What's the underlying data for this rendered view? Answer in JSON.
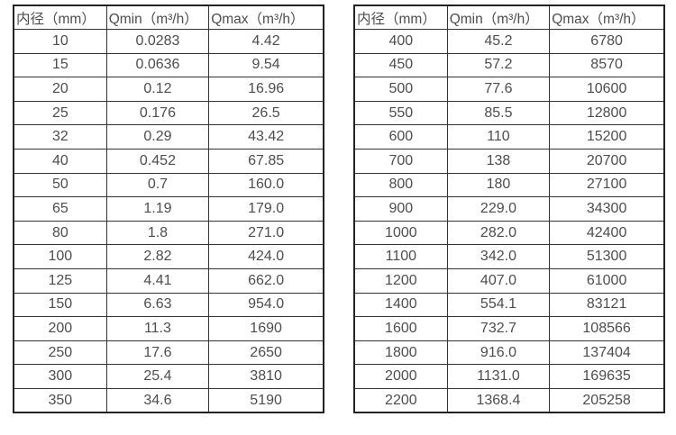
{
  "colors": {
    "background": "#ffffff",
    "border_outer": "#222222",
    "border_inner": "#333333",
    "text": "#4d4d4d"
  },
  "tables": [
    {
      "name": "flow-rate-table-small-diameters",
      "headers": [
        "内径（mm）",
        "Qmin（m³/h）",
        "Qmax（m³/h）"
      ],
      "rows": [
        [
          "10",
          "0.0283",
          "4.42"
        ],
        [
          "15",
          "0.0636",
          "9.54"
        ],
        [
          "20",
          "0.12",
          "16.96"
        ],
        [
          "25",
          "0.176",
          "26.5"
        ],
        [
          "32",
          "0.29",
          "43.42"
        ],
        [
          "40",
          "0.452",
          "67.85"
        ],
        [
          "50",
          "0.7",
          "160.0"
        ],
        [
          "65",
          "1.19",
          "179.0"
        ],
        [
          "80",
          "1.8",
          "271.0"
        ],
        [
          "100",
          "2.82",
          "424.0"
        ],
        [
          "125",
          "4.41",
          "662.0"
        ],
        [
          "150",
          "6.63",
          "954.0"
        ],
        [
          "200",
          "11.3",
          "1690"
        ],
        [
          "250",
          "17.6",
          "2650"
        ],
        [
          "300",
          "25.4",
          "3810"
        ],
        [
          "350",
          "34.6",
          "5190"
        ]
      ]
    },
    {
      "name": "flow-rate-table-large-diameters",
      "headers": [
        "内径（mm）",
        "Qmin（m³/h）",
        "Qmax（m³/h）"
      ],
      "rows": [
        [
          "400",
          "45.2",
          "6780"
        ],
        [
          "450",
          "57.2",
          "8570"
        ],
        [
          "500",
          "77.6",
          "10600"
        ],
        [
          "550",
          "85.5",
          "12800"
        ],
        [
          "600",
          "110",
          "15200"
        ],
        [
          "700",
          "138",
          "20700"
        ],
        [
          "800",
          "180",
          "27100"
        ],
        [
          "900",
          "229.0",
          "34300"
        ],
        [
          "1000",
          "282.0",
          "42400"
        ],
        [
          "1100",
          "342.0",
          "51300"
        ],
        [
          "1200",
          "407.0",
          "61000"
        ],
        [
          "1400",
          "554.1",
          "83121"
        ],
        [
          "1600",
          "732.7",
          "108566"
        ],
        [
          "1800",
          "916.0",
          "137404"
        ],
        [
          "2000",
          "1131.0",
          "169635"
        ],
        [
          "2200",
          "1368.4",
          "205258"
        ]
      ]
    }
  ]
}
